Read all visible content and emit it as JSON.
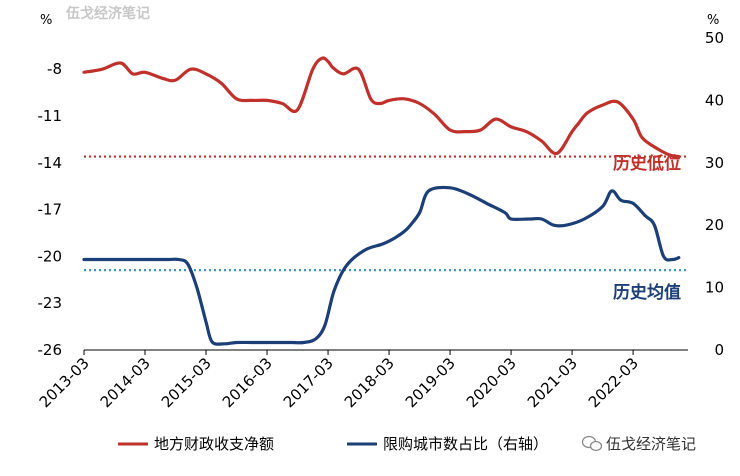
{
  "watermark": "伍戈经济笔记",
  "source_label": "伍戈经济笔记",
  "chart_data": {
    "type": "line",
    "left_unit": "%",
    "right_unit": "%",
    "x_labels": [
      "2013-03",
      "2014-03",
      "2015-03",
      "2016-03",
      "2017-03",
      "2018-03",
      "2019-03",
      "2020-03",
      "2021-03",
      "2022-03"
    ],
    "left_axis": {
      "ylim": [
        -26,
        -6
      ],
      "ticks": [
        -8,
        -11,
        -14,
        -17,
        -20,
        -23,
        -26
      ]
    },
    "right_axis": {
      "ylim": [
        0,
        50
      ],
      "ticks": [
        50,
        40,
        30,
        20,
        10,
        0
      ]
    },
    "grid": false,
    "legend_position": "bottom",
    "colors": {
      "series1": "#c0312b",
      "series2": "#1c3f78",
      "ref1": "#c0312b",
      "ref2": "#3b95c8"
    },
    "series": [
      {
        "name": "地方财政收支净额",
        "axis": "left",
        "x": [
          2013.0,
          2013.3,
          2013.6,
          2013.8,
          2014.0,
          2014.3,
          2014.5,
          2014.75,
          2015.0,
          2015.25,
          2015.5,
          2015.75,
          2016.0,
          2016.25,
          2016.5,
          2016.75,
          2016.9,
          2017.0,
          2017.08,
          2017.25,
          2017.5,
          2017.7,
          2017.85,
          2018.0,
          2018.25,
          2018.5,
          2018.75,
          2019.0,
          2019.25,
          2019.5,
          2019.75,
          2020.0,
          2020.25,
          2020.5,
          2020.75,
          2021.0,
          2021.1,
          2021.25,
          2021.5,
          2021.75,
          2022.0,
          2022.15,
          2022.4,
          2022.6,
          2022.75
        ],
        "values": [
          -8.2,
          -8.0,
          -7.6,
          -8.3,
          -8.2,
          -8.6,
          -8.7,
          -8.0,
          -8.3,
          -8.9,
          -9.9,
          -10.0,
          -10.0,
          -10.2,
          -10.6,
          -8.0,
          -7.3,
          -7.5,
          -7.9,
          -8.3,
          -8.0,
          -9.9,
          -10.2,
          -10.0,
          -9.9,
          -10.2,
          -10.9,
          -11.9,
          -12.0,
          -11.9,
          -11.2,
          -11.7,
          -12.0,
          -12.6,
          -13.4,
          -12.0,
          -11.5,
          -10.8,
          -10.3,
          -10.1,
          -11.2,
          -12.4,
          -13.1,
          -13.5,
          -13.6
        ]
      },
      {
        "name": "限购城市数占比（右轴）",
        "axis": "right",
        "x": [
          2013.0,
          2013.5,
          2014.0,
          2014.2,
          2014.4,
          2014.55,
          2014.7,
          2014.85,
          2015.0,
          2015.1,
          2015.3,
          2015.5,
          2015.75,
          2016.0,
          2016.2,
          2016.4,
          2016.6,
          2016.8,
          2016.95,
          2017.1,
          2017.3,
          2017.6,
          2017.9,
          2018.1,
          2018.25,
          2018.35,
          2018.5,
          2018.65,
          2019.0,
          2019.3,
          2019.6,
          2019.9,
          2020.0,
          2020.3,
          2020.5,
          2020.7,
          2020.9,
          2021.2,
          2021.5,
          2021.65,
          2021.8,
          2022.0,
          2022.2,
          2022.35,
          2022.5,
          2022.65,
          2022.75
        ],
        "values": [
          14.5,
          14.5,
          14.5,
          14.5,
          14.5,
          14.5,
          13.8,
          10.0,
          4.5,
          1.3,
          1.0,
          1.2,
          1.2,
          1.2,
          1.2,
          1.2,
          1.2,
          1.8,
          4.0,
          9.5,
          13.5,
          16.0,
          17.0,
          18.0,
          19.0,
          20.0,
          22.0,
          25.5,
          26.0,
          25.0,
          23.5,
          22.0,
          21.0,
          21.0,
          21.0,
          20.0,
          20.0,
          21.0,
          23.0,
          25.5,
          24.0,
          23.5,
          21.5,
          20.0,
          15.0,
          14.5,
          14.8
        ]
      }
    ],
    "reference_lines": [
      {
        "axis": "left",
        "value": -13.6,
        "label": "历史低位"
      },
      {
        "axis": "right",
        "value": 12.8,
        "label": "历史均值"
      }
    ]
  }
}
